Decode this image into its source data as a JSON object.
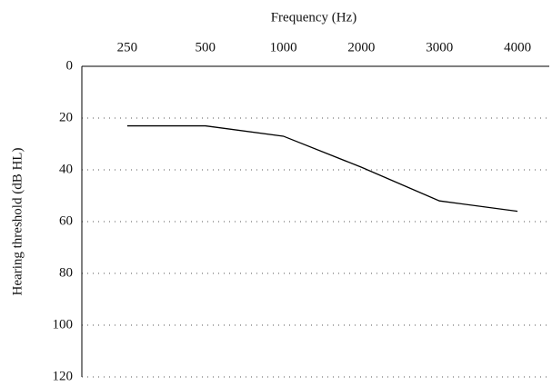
{
  "chart_data": {
    "type": "line",
    "title": "Frequency (Hz)",
    "y_label": "Hearing threshold (dB HL)",
    "categories": [
      "250",
      "500",
      "1000",
      "2000",
      "3000",
      "4000"
    ],
    "values": [
      23,
      23,
      27,
      39,
      52,
      56
    ],
    "color": "#000000",
    "ylim": [
      0,
      120
    ],
    "yticks": [
      0,
      20,
      40,
      60,
      80,
      100,
      120
    ],
    "y_inverted": true,
    "grid": true,
    "x_axis_position": "top"
  }
}
